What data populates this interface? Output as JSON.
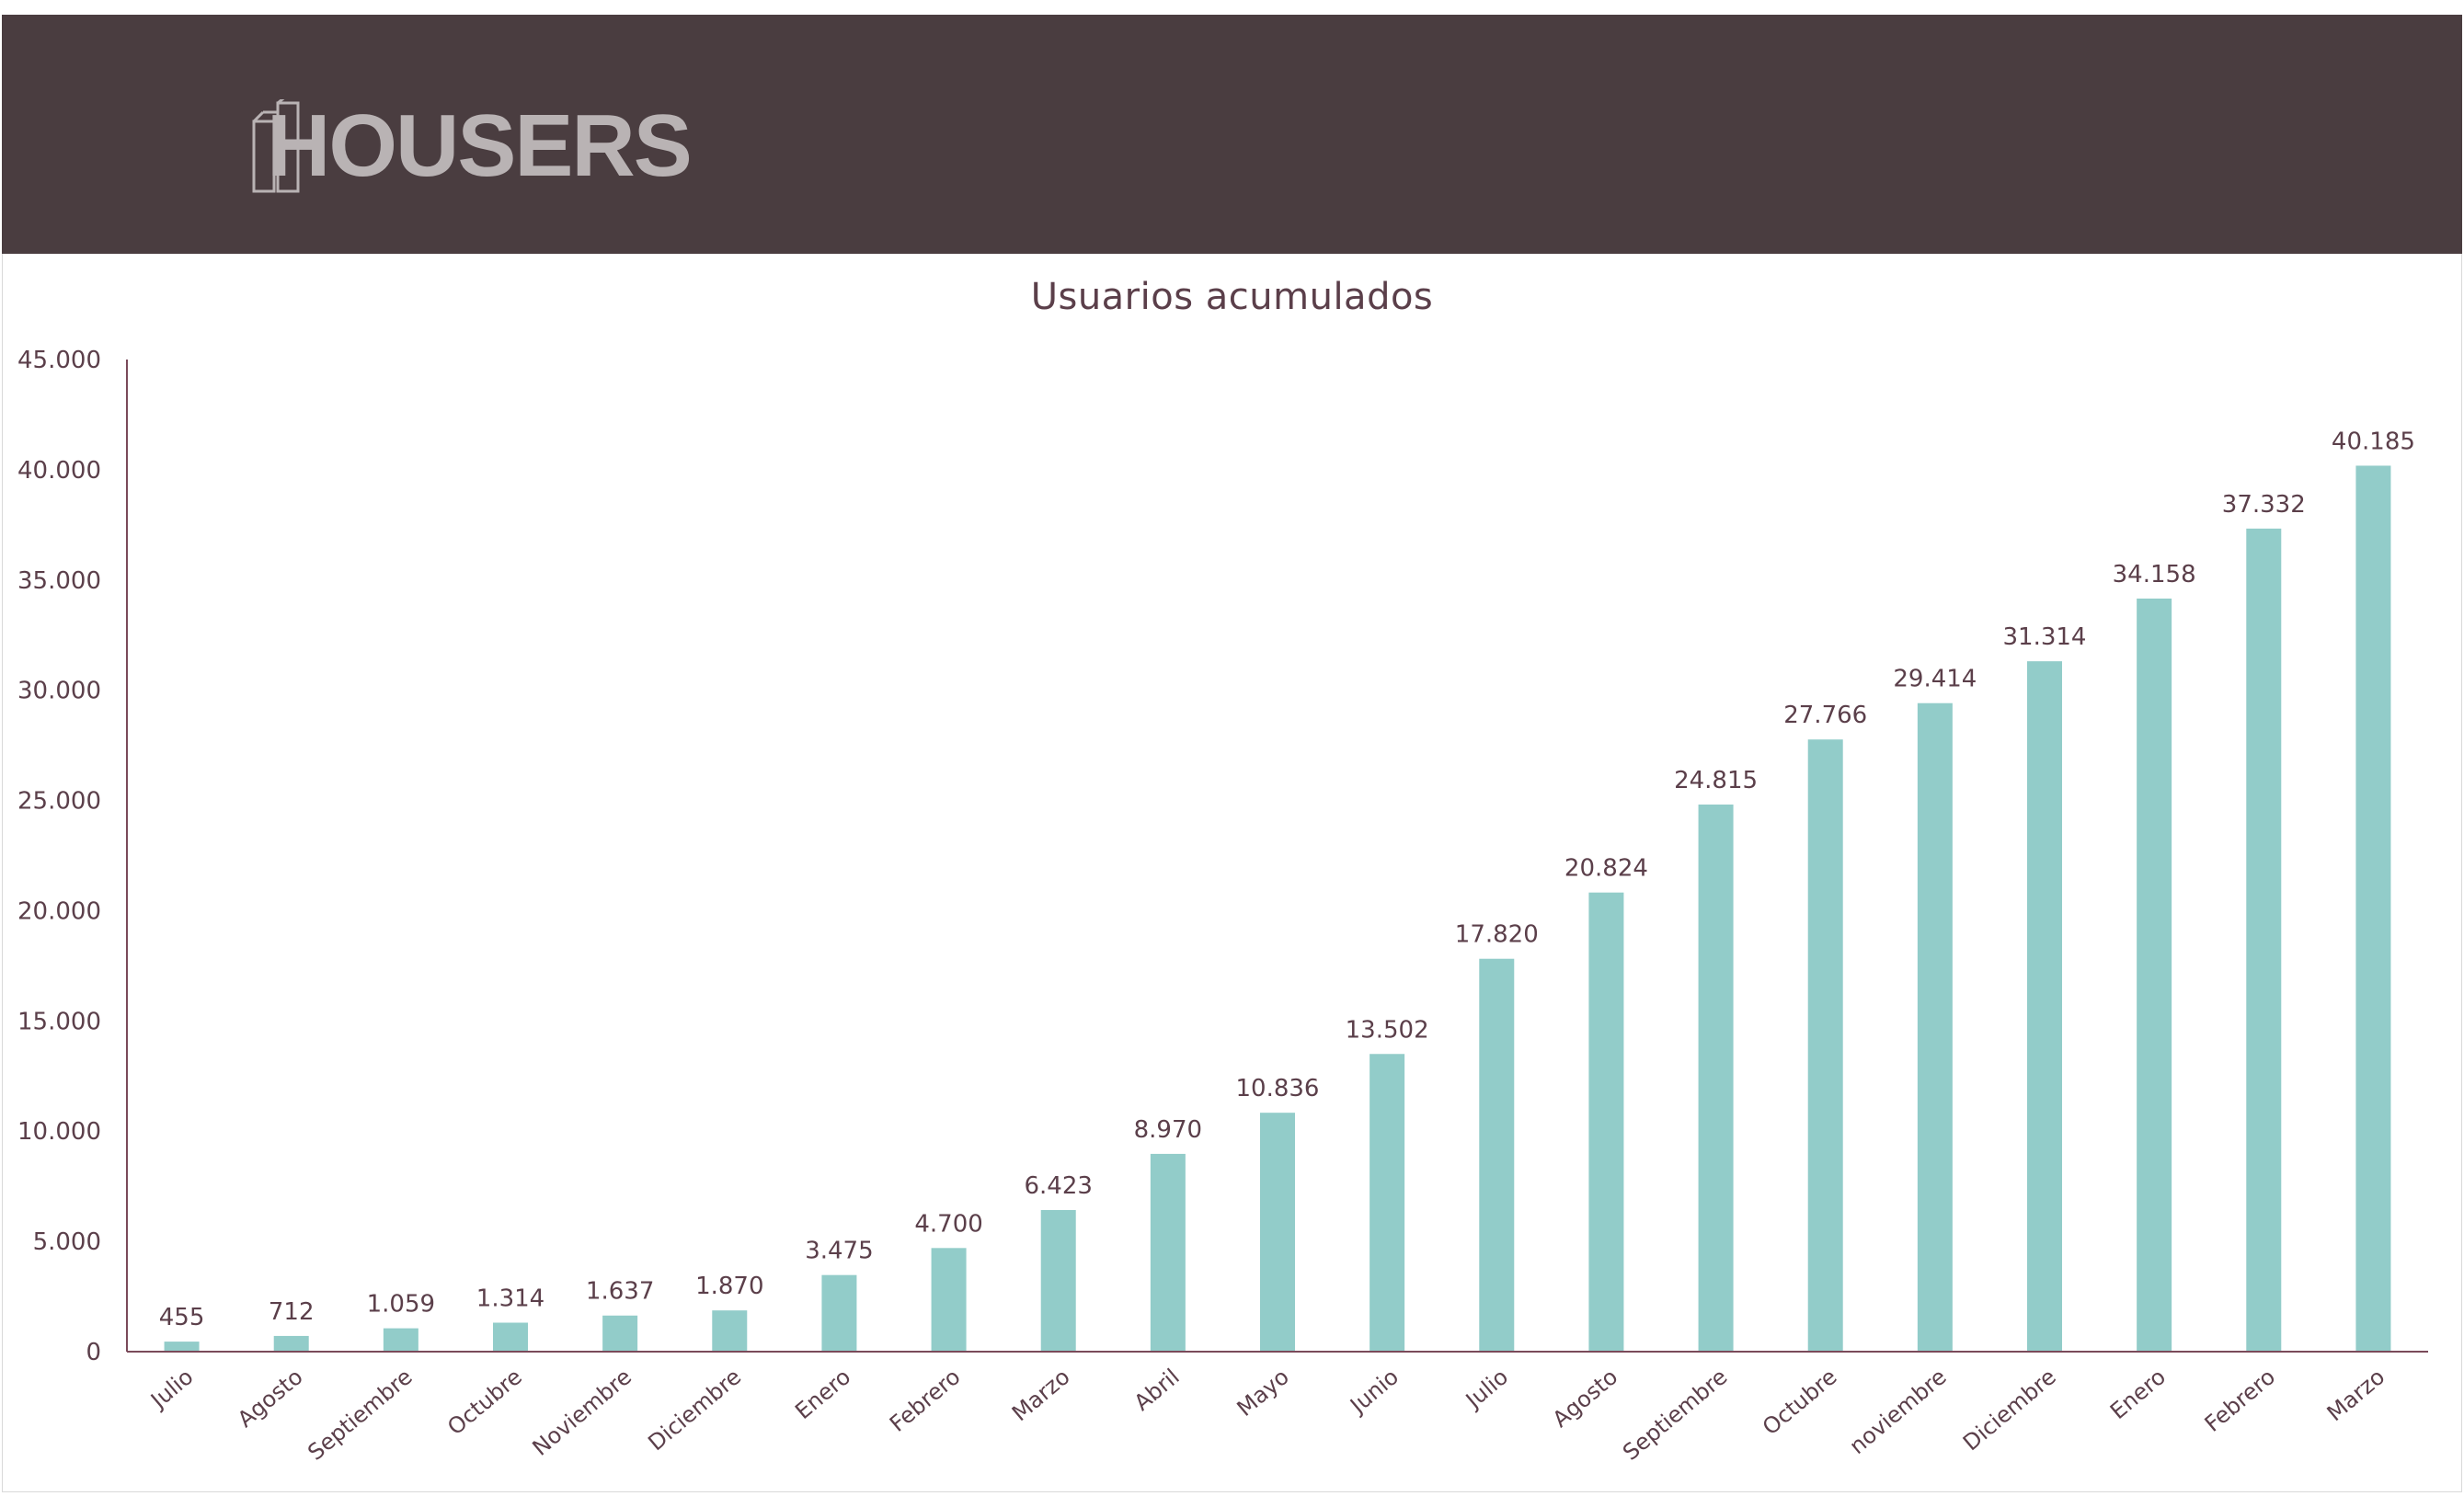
{
  "brand": {
    "name": "HOUSERS",
    "header_color": "#4a3d40",
    "logo_color": "#b9b3b4"
  },
  "chart_data": {
    "type": "bar",
    "title": "Usuarios acumulados",
    "xlabel": "",
    "ylabel": "",
    "ylim": [
      0,
      45000
    ],
    "yticks": [
      0,
      5000,
      10000,
      15000,
      20000,
      25000,
      30000,
      35000,
      40000,
      45000
    ],
    "ytick_labels": [
      "0",
      "5.000",
      "10.000",
      "15.000",
      "20.000",
      "25.000",
      "30.000",
      "35.000",
      "40.000",
      "45.000"
    ],
    "grid": false,
    "legend": "none",
    "bar_color": "#92ccc9",
    "axis_color": "#7a4a5a",
    "categories": [
      "Julio",
      "Agosto",
      "Septiembre",
      "Octubre",
      "Noviembre",
      "Diciembre",
      "Enero",
      "Febrero",
      "Marzo",
      "Abril",
      "Mayo",
      "Junio",
      "Julio",
      "Agosto",
      "Septiembre",
      "Octubre",
      "noviembre",
      "Diciembre",
      "Enero",
      "Febrero",
      "Marzo"
    ],
    "values": [
      455,
      712,
      1059,
      1314,
      1637,
      1870,
      3475,
      4700,
      6423,
      8970,
      10836,
      13502,
      17820,
      20824,
      24815,
      27766,
      29414,
      31314,
      34158,
      37332,
      40185
    ],
    "value_labels": [
      "455",
      "712",
      "1.059",
      "1.314",
      "1.637",
      "1.870",
      "3.475",
      "4.700",
      "6.423",
      "8.970",
      "10.836",
      "13.502",
      "17.820",
      "20.824",
      "24.815",
      "27.766",
      "29.414",
      "31.314",
      "34.158",
      "37.332",
      "40.185"
    ]
  }
}
